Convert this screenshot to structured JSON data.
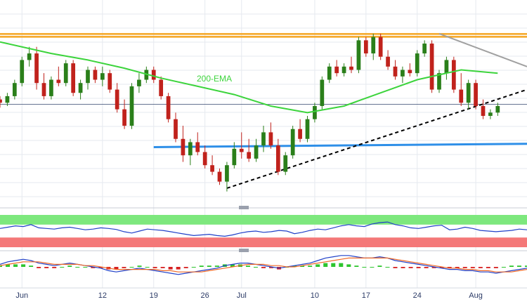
{
  "chart_data": {
    "type": "candlestick",
    "x_ticks": [
      "Jun",
      "12",
      "19",
      "26",
      "Jul",
      "10",
      "17",
      "24",
      "Aug"
    ],
    "x_tick_days": [
      1,
      12,
      19,
      26,
      31,
      41,
      48,
      55,
      63
    ],
    "x_range_days": [
      -2,
      70
    ],
    "price_range": [
      0,
      100
    ],
    "annotation": "200-EMA",
    "colors": {
      "up": "#2a7f1a",
      "down": "#c0221c",
      "ema": "#3cd43c",
      "resistance": "#f5a623",
      "support": "#2e8fe8",
      "trendline": "#000000",
      "downtrend": "#a0a0a0",
      "rsi_line": "#2040c8",
      "rsi_overbought": "#7de87d",
      "rsi_oversold": "#f47878",
      "macd_line": "#2040c8",
      "signal_line": "#f06a28"
    },
    "candles": [
      [
        -2,
        60,
        62,
        55,
        58
      ],
      [
        -1,
        58,
        64,
        56,
        62
      ],
      [
        0,
        62,
        72,
        60,
        70
      ],
      [
        1,
        70,
        86,
        68,
        84
      ],
      [
        2,
        84,
        92,
        80,
        88
      ],
      [
        3,
        88,
        92,
        66,
        70
      ],
      [
        4,
        70,
        76,
        60,
        62
      ],
      [
        5,
        62,
        74,
        60,
        72
      ],
      [
        6,
        72,
        80,
        68,
        70
      ],
      [
        7,
        70,
        84,
        68,
        82
      ],
      [
        8,
        82,
        84,
        62,
        64
      ],
      [
        9,
        64,
        72,
        60,
        70
      ],
      [
        10,
        70,
        80,
        66,
        78
      ],
      [
        11,
        78,
        80,
        70,
        72
      ],
      [
        12,
        72,
        80,
        68,
        76
      ],
      [
        13,
        76,
        78,
        64,
        66
      ],
      [
        14,
        66,
        70,
        52,
        54
      ],
      [
        15,
        54,
        60,
        42,
        44
      ],
      [
        16,
        44,
        70,
        42,
        68
      ],
      [
        17,
        68,
        76,
        64,
        72
      ],
      [
        18,
        72,
        80,
        70,
        78
      ],
      [
        19,
        78,
        80,
        70,
        72
      ],
      [
        20,
        72,
        74,
        60,
        62
      ],
      [
        21,
        62,
        64,
        46,
        48
      ],
      [
        22,
        48,
        52,
        34,
        36
      ],
      [
        23,
        36,
        44,
        22,
        26
      ],
      [
        24,
        26,
        36,
        20,
        34
      ],
      [
        25,
        34,
        40,
        26,
        28
      ],
      [
        26,
        28,
        32,
        18,
        20
      ],
      [
        27,
        20,
        26,
        14,
        16
      ],
      [
        28,
        16,
        18,
        8,
        10
      ],
      [
        29,
        10,
        22,
        4,
        20
      ],
      [
        30,
        20,
        34,
        18,
        30
      ],
      [
        31,
        30,
        40,
        24,
        28
      ],
      [
        32,
        28,
        36,
        22,
        24
      ],
      [
        33,
        24,
        36,
        22,
        32
      ],
      [
        34,
        32,
        44,
        28,
        40
      ],
      [
        35,
        40,
        46,
        30,
        32
      ],
      [
        36,
        32,
        36,
        14,
        16
      ],
      [
        37,
        16,
        28,
        14,
        26
      ],
      [
        38,
        26,
        44,
        24,
        42
      ],
      [
        39,
        42,
        48,
        34,
        36
      ],
      [
        40,
        36,
        50,
        34,
        48
      ],
      [
        41,
        48,
        58,
        46,
        56
      ],
      [
        42,
        56,
        74,
        54,
        72
      ],
      [
        43,
        72,
        82,
        70,
        80
      ],
      [
        44,
        80,
        84,
        74,
        76
      ],
      [
        45,
        76,
        82,
        74,
        80
      ],
      [
        46,
        80,
        86,
        76,
        78
      ],
      [
        47,
        78,
        98,
        76,
        96
      ],
      [
        48,
        96,
        98,
        86,
        88
      ],
      [
        49,
        88,
        100,
        84,
        98
      ],
      [
        50,
        98,
        100,
        84,
        86
      ],
      [
        51,
        86,
        90,
        78,
        80
      ],
      [
        52,
        80,
        84,
        72,
        74
      ],
      [
        53,
        74,
        80,
        70,
        78
      ],
      [
        54,
        78,
        82,
        74,
        76
      ],
      [
        55,
        76,
        90,
        74,
        88
      ],
      [
        56,
        88,
        96,
        86,
        94
      ],
      [
        57,
        94,
        96,
        64,
        66
      ],
      [
        58,
        66,
        78,
        64,
        76
      ],
      [
        59,
        76,
        86,
        72,
        84
      ],
      [
        60,
        84,
        86,
        64,
        66
      ],
      [
        61,
        66,
        76,
        56,
        58
      ],
      [
        62,
        58,
        72,
        54,
        70
      ],
      [
        63,
        70,
        72,
        54,
        56
      ],
      [
        64,
        56,
        60,
        48,
        50
      ],
      [
        65,
        50,
        54,
        48,
        52
      ],
      [
        66,
        52,
        58,
        50,
        56
      ]
    ],
    "ema_200": [
      [
        -2,
        95
      ],
      [
        5,
        88
      ],
      [
        10,
        84
      ],
      [
        15,
        79
      ],
      [
        20,
        73
      ],
      [
        25,
        68
      ],
      [
        30,
        63
      ],
      [
        35,
        56
      ],
      [
        40,
        52
      ],
      [
        45,
        56
      ],
      [
        50,
        64
      ],
      [
        55,
        72
      ],
      [
        58,
        75
      ],
      [
        61,
        78
      ],
      [
        66,
        76
      ]
    ],
    "resistance_level": 99,
    "support_line": [
      [
        19,
        31
      ],
      [
        70,
        33
      ]
    ],
    "horizontal_line": 57,
    "uptrend_line": [
      [
        29,
        6
      ],
      [
        70,
        66
      ]
    ],
    "downtrend_line": [
      [
        58,
        100
      ],
      [
        70,
        80
      ]
    ],
    "rsi": [
      58,
      62,
      66,
      64,
      70,
      60,
      58,
      56,
      60,
      62,
      58,
      54,
      56,
      60,
      58,
      55,
      48,
      44,
      50,
      56,
      54,
      52,
      48,
      44,
      40,
      36,
      38,
      40,
      36,
      34,
      38,
      44,
      48,
      50,
      46,
      48,
      52,
      50,
      42,
      46,
      52,
      56,
      54,
      60,
      66,
      70,
      66,
      64,
      72,
      76,
      78,
      70,
      66,
      60,
      58,
      62,
      66,
      68,
      54,
      56,
      62,
      58,
      52,
      50,
      48,
      50,
      52,
      56,
      54
    ],
    "macd": [
      2,
      4,
      5,
      6,
      5,
      3,
      2,
      1,
      2,
      3,
      2,
      1,
      0,
      -1,
      -3,
      -4,
      -3,
      -2,
      -1,
      -2,
      -3,
      -4,
      -5,
      -6,
      -5,
      -4,
      -3,
      -2,
      -1,
      1,
      2,
      3,
      3,
      2,
      1,
      0,
      -1,
      0,
      1,
      2,
      3,
      5,
      7,
      8,
      9,
      9,
      8,
      7,
      7,
      8,
      7,
      5,
      4,
      3,
      2,
      1,
      0,
      -1,
      -2,
      -2,
      -3,
      -3,
      -4,
      -4,
      -5,
      -4,
      -3,
      -2,
      -1
    ],
    "signal": [
      1,
      2,
      3,
      4,
      4,
      4,
      3,
      2,
      2,
      2,
      2,
      1,
      1,
      0,
      -1,
      -2,
      -2,
      -2,
      -2,
      -2,
      -2,
      -3,
      -3,
      -4,
      -4,
      -4,
      -4,
      -3,
      -2,
      -1,
      0,
      1,
      2,
      2,
      2,
      1,
      1,
      0,
      0,
      1,
      2,
      3,
      4,
      5,
      6,
      7,
      7,
      7,
      7,
      7,
      7,
      6,
      5,
      4,
      3,
      2,
      1,
      0,
      -1,
      -1,
      -2,
      -2,
      -3,
      -3,
      -4,
      -4,
      -4,
      -3,
      -2
    ]
  }
}
